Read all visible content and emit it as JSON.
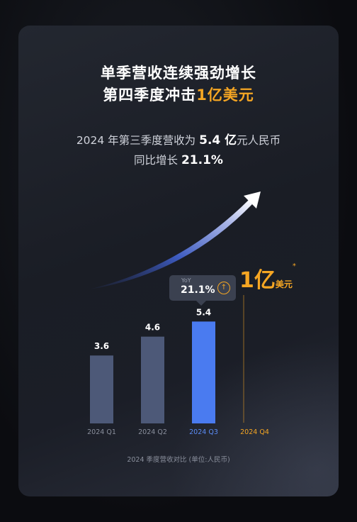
{
  "headline": {
    "line1": "单季营收连续强劲增长",
    "line2_prefix": "第四季度冲击",
    "line2_highlight": "1亿美元"
  },
  "subline": {
    "l1_prefix": "2024 年第三季度营收为 ",
    "l1_value": "5.4 亿",
    "l1_suffix": "元人民币",
    "l2_prefix": "同比增长 ",
    "l2_value": "21.1%"
  },
  "tooltip": {
    "label": "YoY",
    "value": "21.1%",
    "icon": "arrow-up-circle-icon"
  },
  "target": {
    "big": "1亿",
    "small": "美元",
    "star": "*"
  },
  "caption": "2024 季度营收对比 (单位:人民币)",
  "colors": {
    "bar_default": "#4d5978",
    "bar_highlight": "#4a7bf0",
    "accent": "#f5a623",
    "q3_label": "#5b8cf5",
    "axis_label": "#8a8f9c"
  },
  "chart_data": {
    "type": "bar",
    "categories": [
      "2024 Q1",
      "2024 Q2",
      "2024 Q3",
      "2024 Q4"
    ],
    "values": [
      3.6,
      4.6,
      5.4,
      null
    ],
    "value_labels": [
      "3.6",
      "4.6",
      "5.4",
      ""
    ],
    "highlight_index": 2,
    "target_index": 3,
    "xlabel": "",
    "ylabel": "",
    "grid": false
  }
}
